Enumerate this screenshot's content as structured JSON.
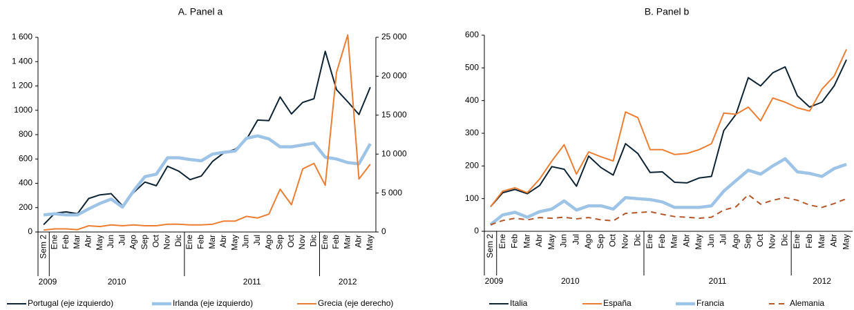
{
  "chart_data": [
    {
      "type": "line",
      "title": "A. Panel a",
      "categories": [
        "Sem 2",
        "Ene",
        "Feb",
        "Mar",
        "Abr",
        "May",
        "Jun",
        "Jul",
        "Ago",
        "Sep",
        "Oct",
        "Nov",
        "Dic",
        "Ene",
        "Feb",
        "Mar",
        "Abr",
        "May",
        "Jun",
        "Jul",
        "Ago",
        "Sep",
        "Oct",
        "Nov",
        "Dic",
        "Ene",
        "Feb",
        "Mar",
        "Abr",
        "May"
      ],
      "groups": [
        {
          "label": "2009",
          "size": 1
        },
        {
          "label": "2010",
          "size": 12
        },
        {
          "label": "2011",
          "size": 12
        },
        {
          "label": "2012",
          "size": 5
        }
      ],
      "ylim": [
        0,
        1600
      ],
      "yticks": [
        0,
        200,
        400,
        600,
        800,
        1000,
        {
          "value": 1200,
          "label": "1 200"
        },
        {
          "value": 1400,
          "label": "1 400"
        },
        {
          "value": 1600,
          "label": "1 600"
        }
      ],
      "y2lim": [
        0,
        25000
      ],
      "y2ticks": [
        0,
        {
          "value": 5000,
          "label": "5 000"
        },
        {
          "value": 10000,
          "label": "10 000"
        },
        {
          "value": 15000,
          "label": "15 000"
        },
        {
          "value": 20000,
          "label": "20 000"
        },
        {
          "value": 25000,
          "label": "25 000"
        }
      ],
      "series": [
        {
          "name": "Portugal (eje izquierdo)",
          "color": "#0d2233",
          "line_width": 2,
          "values": [
            60,
            155,
            165,
            150,
            275,
            305,
            315,
            215,
            325,
            410,
            380,
            540,
            500,
            430,
            460,
            580,
            650,
            680,
            760,
            920,
            915,
            1110,
            970,
            1065,
            1095,
            1485,
            1170,
            1070,
            965,
            1190
          ]
        },
        {
          "name": "Irlanda (eje izquierdo)",
          "color": "#9dc3e6",
          "line_width": 4.5,
          "values": [
            140,
            150,
            140,
            140,
            190,
            235,
            270,
            205,
            340,
            455,
            475,
            610,
            610,
            595,
            585,
            640,
            655,
            665,
            770,
            790,
            765,
            700,
            700,
            715,
            730,
            615,
            600,
            570,
            560,
            725
          ]
        },
        {
          "name": "Grecia (eje derecho)",
          "color": "#ed7d31",
          "line_width": 2,
          "axis": "y2",
          "values": [
            250,
            400,
            400,
            300,
            800,
            700,
            900,
            800,
            900,
            800,
            800,
            1000,
            1000,
            900,
            900,
            1000,
            1400,
            1400,
            2000,
            1800,
            2300,
            5500,
            3500,
            8100,
            8800,
            6000,
            20500,
            25300,
            6800,
            8700
          ]
        }
      ]
    },
    {
      "type": "line",
      "title": "B. Panel b",
      "categories": [
        "Sem 2",
        "Ene",
        "Feb",
        "Mar",
        "Abr",
        "May",
        "Jun",
        "Jul",
        "Ago",
        "Sep",
        "Oct",
        "Nov",
        "Dic",
        "Ene",
        "Feb",
        "Mar",
        "Abr",
        "May",
        "Jun",
        "Jul",
        "Ago",
        "Sep",
        "Oct",
        "Nov",
        "Dic",
        "Ene",
        "Feb",
        "Mar",
        "Abr",
        "May"
      ],
      "groups": [
        {
          "label": "2009",
          "size": 1
        },
        {
          "label": "2010",
          "size": 12
        },
        {
          "label": "2011",
          "size": 12
        },
        {
          "label": "2012",
          "size": 5
        }
      ],
      "ylim": [
        0,
        600
      ],
      "yticks": [
        0,
        100,
        200,
        300,
        400,
        500,
        600
      ],
      "series": [
        {
          "name": "Italia",
          "color": "#0d2233",
          "line_width": 2,
          "values": [
            75,
            118,
            128,
            115,
            140,
            198,
            190,
            138,
            230,
            195,
            172,
            268,
            238,
            180,
            182,
            150,
            148,
            163,
            168,
            308,
            358,
            470,
            445,
            485,
            503,
            415,
            380,
            395,
            445,
            525
          ]
        },
        {
          "name": "España",
          "color": "#ed7d31",
          "line_width": 2,
          "values": [
            75,
            123,
            133,
            118,
            160,
            215,
            265,
            175,
            243,
            228,
            215,
            365,
            348,
            250,
            250,
            235,
            238,
            250,
            268,
            362,
            358,
            380,
            338,
            408,
            395,
            378,
            368,
            435,
            475,
            557
          ]
        },
        {
          "name": "Francia",
          "color": "#9dc3e6",
          "line_width": 4.5,
          "values": [
            20,
            50,
            58,
            43,
            60,
            68,
            93,
            65,
            78,
            78,
            68,
            103,
            100,
            97,
            90,
            73,
            73,
            73,
            78,
            123,
            155,
            187,
            175,
            200,
            222,
            182,
            177,
            168,
            192,
            205
          ]
        },
        {
          "name": "Alemania",
          "color": "#b5562a",
          "line_width": 2,
          "dash": true,
          "values": [
            20,
            33,
            40,
            35,
            42,
            40,
            43,
            38,
            42,
            35,
            32,
            55,
            57,
            60,
            52,
            45,
            43,
            40,
            43,
            65,
            75,
            112,
            83,
            95,
            103,
            95,
            80,
            73,
            85,
            100
          ]
        }
      ]
    }
  ]
}
